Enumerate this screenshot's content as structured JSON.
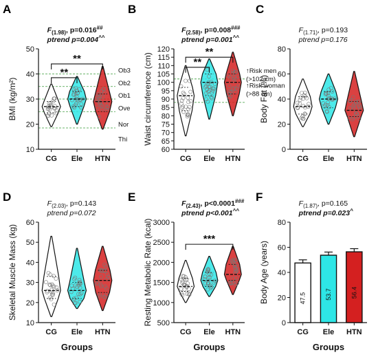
{
  "colors": {
    "CG": "#ffffff",
    "Ele": "#2ee6e6",
    "HTN": "#d42020"
  },
  "xlabel_groups": "Groups",
  "chart_data": [
    {
      "panel": "A",
      "type": "violin",
      "ylabel": "BMI (kg/m²)",
      "ylim": [
        10,
        50
      ],
      "yticks": [
        10,
        20,
        30,
        40,
        50
      ],
      "categories": [
        "CG",
        "Ele",
        "HTN"
      ],
      "stat_line1": {
        "f": "F",
        "df": "(1.98)",
        "rest": ", p=0.016",
        "sup": "##",
        "bold": true
      },
      "stat_line2": {
        "text": "ptrend p=0.004",
        "sup": "^^",
        "bold": true
      },
      "series": [
        {
          "name": "CG",
          "min": 19,
          "q1": 24.5,
          "median": 27,
          "q3": 29,
          "max": 36
        },
        {
          "name": "Ele",
          "min": 20,
          "q1": 27,
          "median": 30,
          "q3": 33,
          "max": 39
        },
        {
          "name": "HTN",
          "min": 18,
          "q1": 25,
          "median": 29,
          "q3": 32,
          "max": 43
        }
      ],
      "ref_lines": [
        {
          "y": 40,
          "label": "Ob3"
        },
        {
          "y": 35,
          "label": "Ob2"
        },
        {
          "y": 30,
          "label": "Ob1"
        },
        {
          "y": 25,
          "label": "Ove"
        },
        {
          "y": 18.5,
          "label": "Nor"
        },
        {
          "y": 14,
          "label": "Thi",
          "line": false
        }
      ],
      "sig_brackets": [
        {
          "from": 0,
          "to": 1,
          "y": 38.5,
          "label": "**"
        },
        {
          "from": 0,
          "to": 2,
          "y": 44,
          "label": "**"
        }
      ]
    },
    {
      "panel": "B",
      "type": "violin",
      "ylabel": "Waist circumference (cm)",
      "ylim": [
        60,
        120
      ],
      "yticks": [
        60,
        65,
        70,
        75,
        80,
        85,
        90,
        95,
        100,
        105,
        110,
        115,
        120
      ],
      "categories": [
        "CG",
        "Ele",
        "HTN"
      ],
      "stat_line1": {
        "f": "F",
        "df": "(2.58)",
        "rest": ", p=0.008",
        "sup": "###",
        "bold": true
      },
      "stat_line2": {
        "text": "ptrend p=0.001",
        "sup": "^^",
        "bold": true
      },
      "series": [
        {
          "name": "CG",
          "min": 68,
          "q1": 83,
          "median": 92,
          "q3": 97,
          "max": 110
        },
        {
          "name": "Ele",
          "min": 78,
          "q1": 92,
          "median": 100,
          "q3": 105,
          "max": 114
        },
        {
          "name": "HTN",
          "min": 80,
          "q1": 93,
          "median": 100,
          "q3": 105,
          "max": 118
        }
      ],
      "ref_lines": [
        {
          "y": 102
        },
        {
          "y": 88
        }
      ],
      "annotations": [
        "↑Risk men",
        "(>102 cm)",
        "↑Risk woman",
        "(>88 cm)"
      ],
      "sig_brackets": [
        {
          "from": 0,
          "to": 1,
          "y": 109,
          "label": "**"
        },
        {
          "from": 0,
          "to": 2,
          "y": 115,
          "label": "**"
        }
      ]
    },
    {
      "panel": "C",
      "type": "violin",
      "ylabel": "Body Fat (%)",
      "ylim": [
        0,
        80
      ],
      "yticks": [
        0,
        20,
        40,
        60,
        80
      ],
      "categories": [
        "CG",
        "Ele",
        "HTN"
      ],
      "stat_line1": {
        "f": "F",
        "df": "(1.71)",
        "rest": ", p=0.193",
        "sup": "",
        "bold": false
      },
      "stat_line2": {
        "text": "ptrend p=0.176",
        "sup": "",
        "bold": false
      },
      "series": [
        {
          "name": "CG",
          "min": 18,
          "q1": 28,
          "median": 34,
          "q3": 42,
          "max": 56
        },
        {
          "name": "Ele",
          "min": 20,
          "q1": 33,
          "median": 40,
          "q3": 46,
          "max": 60
        },
        {
          "name": "HTN",
          "min": 10,
          "q1": 26,
          "median": 31,
          "q3": 38,
          "max": 62
        }
      ]
    },
    {
      "panel": "D",
      "type": "violin",
      "ylabel": "Skeletal Muscle Mass (kg)",
      "ylim": [
        10,
        60
      ],
      "yticks": [
        10,
        20,
        30,
        40,
        50,
        60
      ],
      "categories": [
        "CG",
        "Ele",
        "HTN"
      ],
      "stat_line1": {
        "f": "F",
        "df": "(2.03)",
        "rest": ", p=0.143",
        "sup": "",
        "bold": false
      },
      "stat_line2": {
        "text": "ptrend p=0.072",
        "sup": "",
        "bold": false
      },
      "series": [
        {
          "name": "CG",
          "min": 13,
          "q1": 22,
          "median": 26,
          "q3": 33,
          "max": 53
        },
        {
          "name": "Ele",
          "min": 17,
          "q1": 22,
          "median": 26,
          "q3": 30,
          "max": 47
        },
        {
          "name": "HTN",
          "min": 16,
          "q1": 25,
          "median": 31,
          "q3": 36,
          "max": 48
        }
      ]
    },
    {
      "panel": "E",
      "type": "violin",
      "ylabel": "Resting Metabolic Rate (kcal)",
      "ylim": [
        500,
        3000
      ],
      "yticks": [
        500,
        1000,
        1500,
        2000,
        2500,
        3000
      ],
      "categories": [
        "CG",
        "Ele",
        "HTN"
      ],
      "stat_line1": {
        "f": "F",
        "df": "(2.43)",
        "rest": ", p<0.0001",
        "sup": "###",
        "bold": true
      },
      "stat_line2": {
        "text": "ptrend p<0.001",
        "sup": "^^",
        "bold": true
      },
      "series": [
        {
          "name": "CG",
          "min": 1000,
          "q1": 1280,
          "median": 1400,
          "q3": 1600,
          "max": 2050
        },
        {
          "name": "Ele",
          "min": 1150,
          "q1": 1400,
          "median": 1550,
          "q3": 1750,
          "max": 2150
        },
        {
          "name": "HTN",
          "min": 1200,
          "q1": 1550,
          "median": 1700,
          "q3": 1950,
          "max": 2400
        }
      ],
      "sig_brackets": [
        {
          "from": 0,
          "to": 2,
          "y": 2450,
          "label": "***"
        }
      ]
    },
    {
      "panel": "F",
      "type": "bar",
      "ylabel": "Body Age (years)",
      "ylim": [
        0,
        80
      ],
      "yticks": [
        0,
        20,
        40,
        60,
        80
      ],
      "categories": [
        "CG",
        "Ele",
        "HTN"
      ],
      "stat_line1": {
        "f": "F",
        "df": "(1.87)",
        "rest": ", p=0.165",
        "sup": "",
        "bold": false
      },
      "stat_line2": {
        "text": "ptrend p=0.023",
        "sup": "^",
        "bold": true
      },
      "values": [
        47.5,
        53.7,
        56.4
      ],
      "value_labels": [
        "47.5",
        "53.7",
        "56.4"
      ],
      "errors": [
        2.5,
        2.5,
        2.5
      ]
    }
  ]
}
